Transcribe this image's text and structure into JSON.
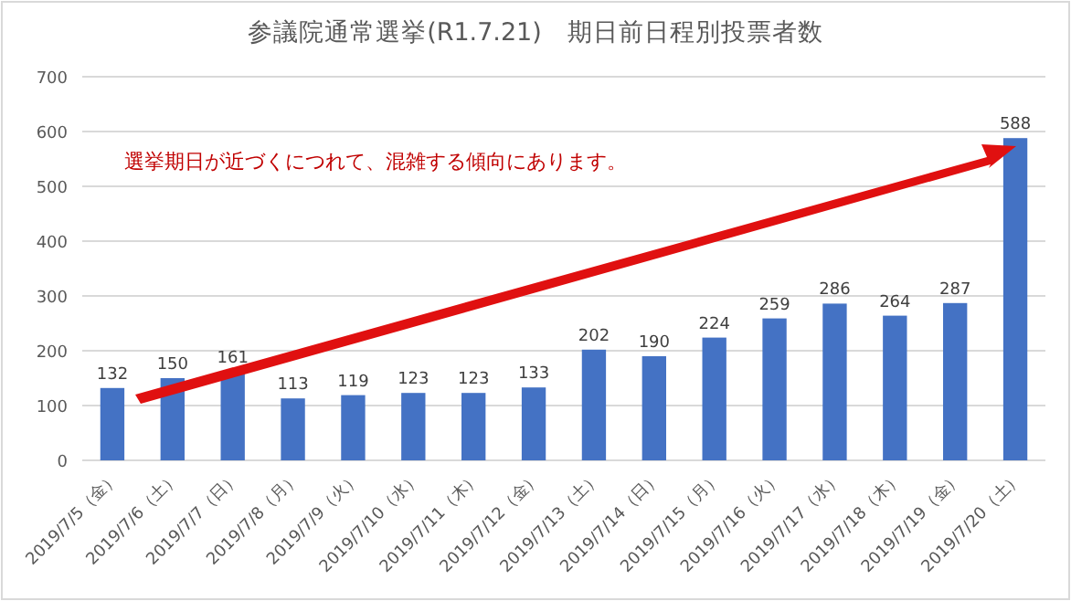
{
  "chart_data": {
    "type": "bar",
    "title": "参議院通常選挙(R1.7.21)　期日前日程別投票者数",
    "categories": [
      "2019/7/5（金）",
      "2019/7/6（土）",
      "2019/7/7（日）",
      "2019/7/8（月）",
      "2019/7/9（火）",
      "2019/7/10（水）",
      "2019/7/11（木）",
      "2019/7/12（金）",
      "2019/7/13（土）",
      "2019/7/14（日）",
      "2019/7/15（月）",
      "2019/7/16（火）",
      "2019/7/17（水）",
      "2019/7/18（木）",
      "2019/7/19（金）",
      "2019/7/20（土）"
    ],
    "values": [
      132,
      150,
      161,
      113,
      119,
      123,
      123,
      133,
      202,
      190,
      224,
      259,
      286,
      264,
      287,
      588
    ],
    "color": "#4472c4",
    "ylim": [
      0,
      700
    ],
    "yticks": [
      0,
      100,
      200,
      300,
      400,
      500,
      600,
      700
    ],
    "grid": "y",
    "data_labels": true,
    "annotations": [
      "選挙期日が近づくにつれて、混雑する傾向にあります。"
    ]
  }
}
